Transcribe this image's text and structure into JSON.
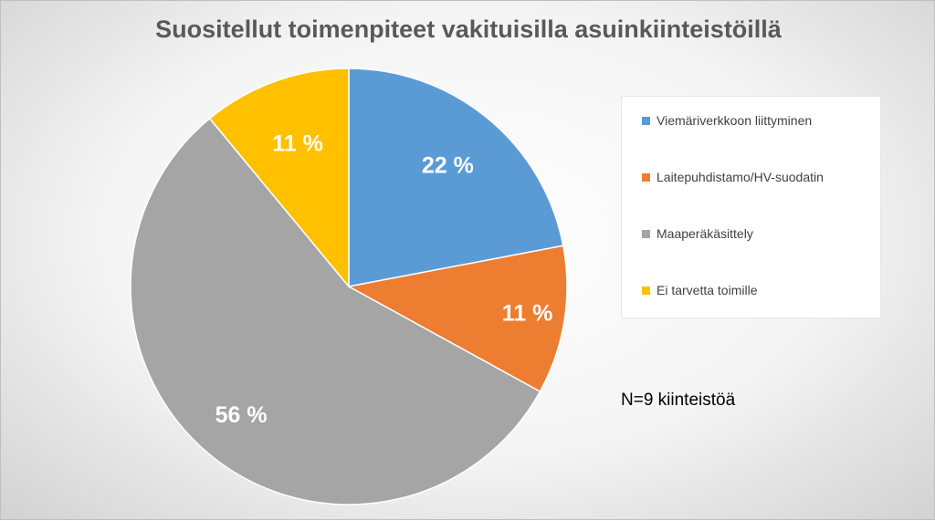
{
  "chart_data": {
    "type": "pie",
    "title": "Suositellut toimenpiteet vakituisilla asuinkiinteistöillä",
    "categories": [
      "Viemäriverkkoon liittyminen",
      "Laitepuhdistamo/HV-suodatin",
      "Maaperäkäsittely",
      "Ei tarvetta toimille"
    ],
    "values": [
      22,
      11,
      56,
      11
    ],
    "data_labels": [
      "22 %",
      "11 %",
      "56 %",
      "11 %"
    ],
    "colors": [
      "#5b9bd5",
      "#ed7d31",
      "#a5a5a5",
      "#ffc000"
    ],
    "legend_position": "right",
    "start_angle": "12 o'clock",
    "direction": "clockwise"
  },
  "note": "N=9 kiinteistöä"
}
